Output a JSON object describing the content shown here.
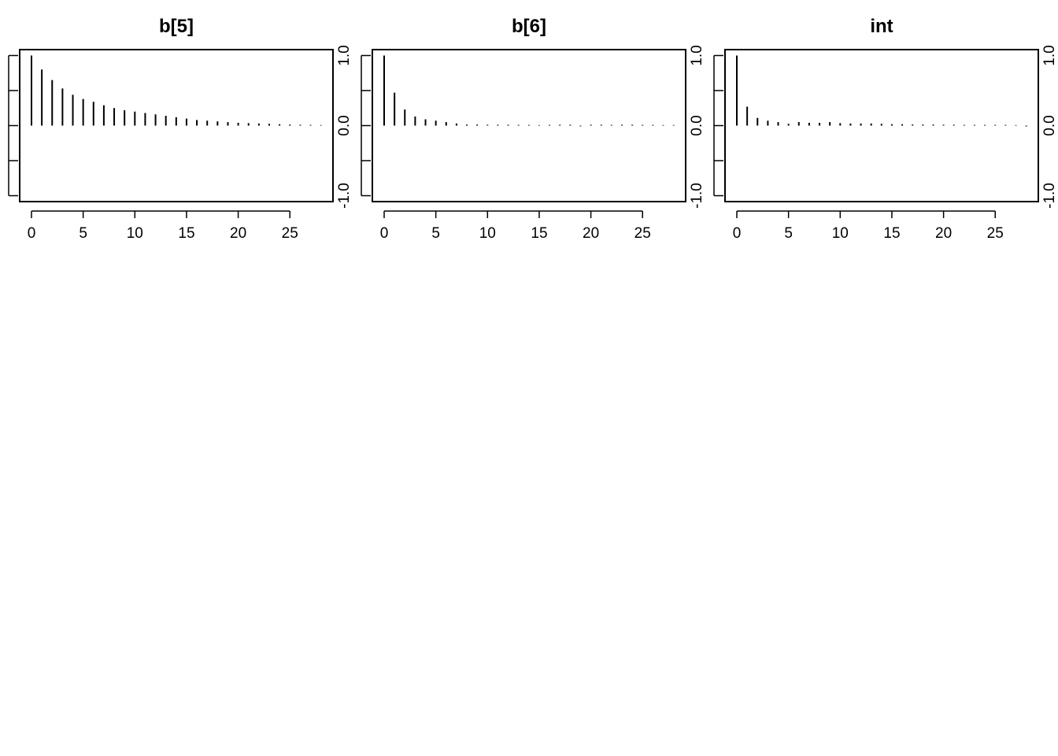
{
  "chart_data": [
    {
      "type": "bar",
      "title": "b[5]",
      "xlabel": "",
      "ylabel": "",
      "xlim": [
        -1,
        29
      ],
      "ylim": [
        -1,
        1
      ],
      "x_ticks": [
        "0",
        "5",
        "10",
        "15",
        "20",
        "25"
      ],
      "y_ticks": [
        "-1.0",
        "0.0",
        "1.0"
      ],
      "x": [
        0,
        1,
        2,
        3,
        4,
        5,
        6,
        7,
        8,
        9,
        10,
        11,
        12,
        13,
        14,
        15,
        16,
        17,
        18,
        19,
        20,
        21,
        22,
        23,
        24,
        25,
        26,
        27,
        28
      ],
      "values": [
        1.0,
        0.8,
        0.65,
        0.53,
        0.44,
        0.38,
        0.34,
        0.29,
        0.25,
        0.22,
        0.2,
        0.18,
        0.16,
        0.14,
        0.12,
        0.1,
        0.08,
        0.07,
        0.06,
        0.05,
        0.04,
        0.035,
        0.03,
        0.025,
        0.02,
        0.015,
        0.012,
        0.01,
        0.008
      ]
    },
    {
      "type": "bar",
      "title": "b[6]",
      "xlabel": "",
      "ylabel": "",
      "xlim": [
        -1,
        29
      ],
      "ylim": [
        -1,
        1
      ],
      "x_ticks": [
        "0",
        "5",
        "10",
        "15",
        "20",
        "25"
      ],
      "y_ticks": [
        "-1.0",
        "0.0",
        "1.0"
      ],
      "x": [
        0,
        1,
        2,
        3,
        4,
        5,
        6,
        7,
        8,
        9,
        10,
        11,
        12,
        13,
        14,
        15,
        16,
        17,
        18,
        19,
        20,
        21,
        22,
        23,
        24,
        25,
        26,
        27,
        28
      ],
      "values": [
        1.0,
        0.47,
        0.23,
        0.13,
        0.09,
        0.07,
        0.05,
        0.03,
        0.015,
        0.015,
        0.012,
        0.012,
        0.012,
        0.01,
        0.01,
        0.008,
        0.01,
        0.012,
        0.012,
        -0.01,
        0.012,
        0.012,
        0.01,
        0.012,
        0.012,
        0.01,
        0.01,
        0.008,
        0.008
      ]
    },
    {
      "type": "bar",
      "title": "int",
      "xlabel": "",
      "ylabel": "",
      "xlim": [
        -1,
        29
      ],
      "ylim": [
        -1,
        1
      ],
      "x_ticks": [
        "0",
        "5",
        "10",
        "15",
        "20",
        "25"
      ],
      "y_ticks": [
        "-1.0",
        "0.0",
        "1.0"
      ],
      "x": [
        0,
        1,
        2,
        3,
        4,
        5,
        6,
        7,
        8,
        9,
        10,
        11,
        12,
        13,
        14,
        15,
        16,
        17,
        18,
        19,
        20,
        21,
        22,
        23,
        24,
        25,
        26,
        27,
        28
      ],
      "values": [
        1.0,
        0.27,
        0.11,
        0.07,
        0.05,
        0.025,
        0.05,
        0.04,
        0.04,
        0.05,
        0.035,
        0.03,
        0.03,
        0.03,
        0.025,
        0.02,
        0.02,
        0.015,
        0.015,
        0.015,
        0.012,
        0.012,
        0.01,
        0.01,
        0.01,
        0.01,
        0.01,
        0.008,
        -0.012
      ]
    }
  ]
}
